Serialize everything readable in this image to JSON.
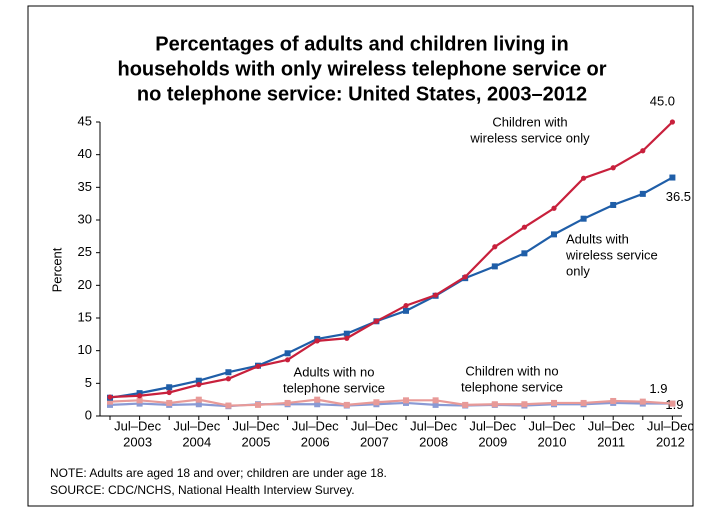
{
  "chart_data": {
    "type": "line",
    "title_lines": [
      "Percentages of adults and children living in",
      "households with only wireless telephone service or",
      "no telephone service: United States, 2003–2012"
    ],
    "y_label": "Percent",
    "categories": [
      null,
      "Jul–Dec",
      null,
      "Jul–Dec",
      null,
      "Jul–Dec",
      null,
      "Jul–Dec",
      null,
      "Jul–Dec",
      null,
      "Jul–Dec",
      null,
      "Jul–Dec",
      null,
      "Jul–Dec",
      null,
      "Jul–Dec",
      null,
      "Jul–Dec"
    ],
    "years": [
      "2003",
      "2004",
      "2005",
      "2006",
      "2007",
      "2008",
      "2009",
      "2010",
      "2011",
      "2012"
    ],
    "ylim": [
      0,
      45
    ],
    "yticks": [
      0,
      5,
      10,
      15,
      20,
      25,
      30,
      35,
      40,
      45
    ],
    "grid": false,
    "series": [
      {
        "label": [
          "Adults with no",
          "telephone service"
        ],
        "color": "#8a9ad4",
        "marker": "square",
        "values": [
          1.7,
          1.9,
          1.7,
          1.8,
          1.5,
          1.8,
          1.8,
          1.8,
          1.6,
          1.8,
          2.0,
          1.7,
          1.6,
          1.7,
          1.6,
          1.8,
          1.8,
          2.0,
          1.9,
          1.9
        ],
        "value_labels": [
          null,
          null,
          null,
          null,
          null,
          null,
          null,
          null,
          null,
          null,
          null,
          null,
          null,
          null,
          null,
          null,
          null,
          null,
          null,
          "1.9"
        ]
      },
      {
        "label": [
          "Children with no",
          "telephone service"
        ],
        "color": "#e89a98",
        "marker": "square",
        "values": [
          2.2,
          2.4,
          2.0,
          2.5,
          1.6,
          1.7,
          2.0,
          2.5,
          1.7,
          2.1,
          2.4,
          2.4,
          1.7,
          1.8,
          1.8,
          2.0,
          2.0,
          2.3,
          2.2,
          1.9
        ],
        "value_labels": [
          null,
          null,
          null,
          null,
          null,
          null,
          null,
          null,
          null,
          null,
          null,
          null,
          null,
          null,
          null,
          null,
          null,
          null,
          null,
          "1.9"
        ]
      },
      {
        "label": [
          "Adults with",
          "wireless service",
          "only"
        ],
        "color": "#1f5ea8",
        "marker": "square",
        "values": [
          2.8,
          3.5,
          4.4,
          5.4,
          6.7,
          7.7,
          9.6,
          11.8,
          12.6,
          14.5,
          16.1,
          18.4,
          21.1,
          22.9,
          24.9,
          27.8,
          30.2,
          32.3,
          34.0,
          36.5
        ],
        "value_labels": [
          null,
          null,
          null,
          null,
          null,
          null,
          null,
          null,
          null,
          null,
          null,
          null,
          null,
          null,
          null,
          null,
          null,
          null,
          null,
          "36.5"
        ]
      },
      {
        "label": [
          "Children with",
          "wireless service only"
        ],
        "color": "#c8203c",
        "marker": "circle",
        "values": [
          2.9,
          3.1,
          3.6,
          4.8,
          5.7,
          7.6,
          8.6,
          11.5,
          11.9,
          14.5,
          16.9,
          18.5,
          21.3,
          25.9,
          28.9,
          31.8,
          36.4,
          38.0,
          40.6,
          45.0
        ],
        "value_labels": [
          null,
          null,
          null,
          null,
          null,
          null,
          null,
          null,
          null,
          null,
          null,
          null,
          null,
          null,
          null,
          null,
          null,
          null,
          null,
          "45.0"
        ]
      }
    ],
    "notes": [
      "NOTE: Adults are aged 18 and over; children are under age 18.",
      "SOURCE: CDC/NCHS, National Health Interview Survey."
    ]
  }
}
